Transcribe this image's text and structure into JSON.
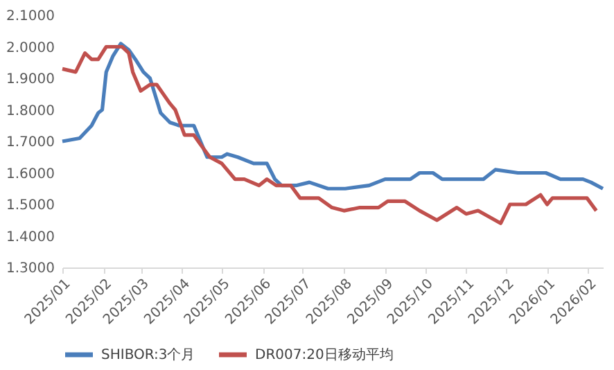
{
  "chart_data": {
    "type": "line",
    "legend": "bottom",
    "grid": false,
    "xlim": [
      "2025-01-01",
      "2026-02-12"
    ],
    "xticks": [
      {
        "value": "2025-01-01",
        "label": "2025/01"
      },
      {
        "value": "2025-02-01",
        "label": "2025/02"
      },
      {
        "value": "2025-03-01",
        "label": "2025/03"
      },
      {
        "value": "2025-04-01",
        "label": "2025/04"
      },
      {
        "value": "2025-05-01",
        "label": "2025/05"
      },
      {
        "value": "2025-06-01",
        "label": "2025/06"
      },
      {
        "value": "2025-07-01",
        "label": "2025/07"
      },
      {
        "value": "2025-08-01",
        "label": "2025/08"
      },
      {
        "value": "2025-09-01",
        "label": "2025/09"
      },
      {
        "value": "2025-10-01",
        "label": "2025/10"
      },
      {
        "value": "2025-11-01",
        "label": "2025/11"
      },
      {
        "value": "2025-12-01",
        "label": "2025/12"
      },
      {
        "value": "2026-01-01",
        "label": "2026/01"
      },
      {
        "value": "2026-02-01",
        "label": "2026/02"
      }
    ],
    "ylim": [
      1.3,
      2.1
    ],
    "yticks": [
      {
        "value": 1.3,
        "label": "1.3000"
      },
      {
        "value": 1.4,
        "label": "1.4000"
      },
      {
        "value": 1.5,
        "label": "1.5000"
      },
      {
        "value": 1.6,
        "label": "1.6000"
      },
      {
        "value": 1.7,
        "label": "1.7000"
      },
      {
        "value": 1.8,
        "label": "1.8000"
      },
      {
        "value": 1.9,
        "label": "1.9000"
      },
      {
        "value": 2.0,
        "label": "2.0000"
      },
      {
        "value": 2.1,
        "label": "2.1000"
      }
    ],
    "series": [
      {
        "name": "SHIBOR:3个月",
        "color": "#4a7ebb",
        "x": [
          "2025-01-01",
          "2025-01-14",
          "2025-01-23",
          "2025-01-28",
          "2025-01-31",
          "2025-02-03",
          "2025-02-08",
          "2025-02-14",
          "2025-02-20",
          "2025-02-25",
          "2025-03-03",
          "2025-03-08",
          "2025-03-16",
          "2025-03-23",
          "2025-03-30",
          "2025-04-10",
          "2025-04-15",
          "2025-04-20",
          "2025-05-01",
          "2025-05-05",
          "2025-05-13",
          "2025-05-25",
          "2025-06-04",
          "2025-06-10",
          "2025-06-15",
          "2025-06-26",
          "2025-07-06",
          "2025-07-20",
          "2025-08-02",
          "2025-08-20",
          "2025-09-01",
          "2025-09-20",
          "2025-09-27",
          "2025-10-07",
          "2025-10-14",
          "2025-10-29",
          "2025-11-14",
          "2025-11-23",
          "2025-12-10",
          "2025-12-20",
          "2025-12-31",
          "2026-01-11",
          "2026-01-28",
          "2026-02-03",
          "2026-02-12"
        ],
        "values": [
          1.7,
          1.71,
          1.75,
          1.79,
          1.8,
          1.92,
          1.97,
          2.01,
          1.99,
          1.96,
          1.92,
          1.9,
          1.79,
          1.76,
          1.75,
          1.75,
          1.7,
          1.65,
          1.65,
          1.66,
          1.65,
          1.63,
          1.63,
          1.58,
          1.56,
          1.56,
          1.57,
          1.55,
          1.55,
          1.56,
          1.58,
          1.58,
          1.6,
          1.6,
          1.58,
          1.58,
          1.58,
          1.61,
          1.6,
          1.6,
          1.6,
          1.58,
          1.58,
          1.57,
          1.55
        ]
      },
      {
        "name": "DR007:20日移动平均",
        "color": "#c0504d",
        "x": [
          "2025-01-01",
          "2025-01-11",
          "2025-01-18",
          "2025-01-23",
          "2025-01-28",
          "2025-02-03",
          "2025-02-08",
          "2025-02-15",
          "2025-02-20",
          "2025-02-23",
          "2025-03-01",
          "2025-03-08",
          "2025-03-13",
          "2025-03-18",
          "2025-03-23",
          "2025-03-27",
          "2025-04-03",
          "2025-04-10",
          "2025-04-15",
          "2025-04-22",
          "2025-05-01",
          "2025-05-11",
          "2025-05-18",
          "2025-05-29",
          "2025-06-04",
          "2025-06-11",
          "2025-06-22",
          "2025-06-29",
          "2025-07-05",
          "2025-07-13",
          "2025-07-23",
          "2025-08-01",
          "2025-08-13",
          "2025-08-27",
          "2025-09-03",
          "2025-09-16",
          "2025-09-27",
          "2025-10-10",
          "2025-10-25",
          "2025-11-01",
          "2025-11-10",
          "2025-11-27",
          "2025-12-04",
          "2025-12-16",
          "2025-12-27",
          "2026-01-01",
          "2026-01-05",
          "2026-01-17",
          "2026-01-31",
          "2026-02-07"
        ],
        "values": [
          1.93,
          1.92,
          1.98,
          1.96,
          1.96,
          2.0,
          2.0,
          2.0,
          1.98,
          1.92,
          1.86,
          1.88,
          1.88,
          1.85,
          1.82,
          1.8,
          1.72,
          1.72,
          1.69,
          1.65,
          1.63,
          1.58,
          1.58,
          1.56,
          1.58,
          1.56,
          1.56,
          1.52,
          1.52,
          1.52,
          1.49,
          1.48,
          1.49,
          1.49,
          1.51,
          1.51,
          1.48,
          1.45,
          1.49,
          1.47,
          1.48,
          1.44,
          1.5,
          1.5,
          1.53,
          1.5,
          1.52,
          1.52,
          1.52,
          1.48
        ]
      }
    ]
  }
}
